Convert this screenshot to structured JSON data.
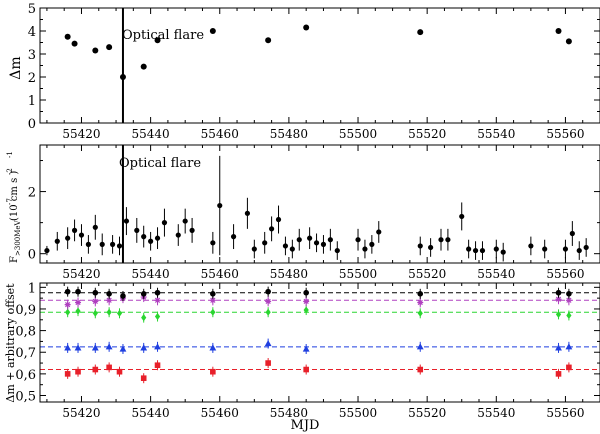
{
  "chart_data": [
    {
      "type": "scatter",
      "title": "",
      "xlabel": "",
      "ylabel": "Δm",
      "xlim": [
        55408,
        55570
      ],
      "ylim": [
        5,
        0
      ],
      "x_ticks": [
        "55420",
        "55440",
        "55460",
        "55480",
        "55500",
        "55520",
        "55540",
        "55560"
      ],
      "y_ticks": [
        "0",
        "1",
        "2",
        "3",
        "4",
        "5"
      ],
      "annotation": "Optical flare",
      "flare_mjd": 55432,
      "points": [
        {
          "x": 55416,
          "y": 3.75
        },
        {
          "x": 55418,
          "y": 3.45
        },
        {
          "x": 55424,
          "y": 3.15
        },
        {
          "x": 55428,
          "y": 3.3
        },
        {
          "x": 55432,
          "y": 2.0
        },
        {
          "x": 55438,
          "y": 2.45
        },
        {
          "x": 55442,
          "y": 3.6
        },
        {
          "x": 55458,
          "y": 4.0
        },
        {
          "x": 55474,
          "y": 3.6
        },
        {
          "x": 55485,
          "y": 4.15
        },
        {
          "x": 55518,
          "y": 3.95
        },
        {
          "x": 55558,
          "y": 4.0
        },
        {
          "x": 55561,
          "y": 3.55
        }
      ]
    },
    {
      "type": "scatter",
      "title": "",
      "xlabel": "",
      "ylabel_main": "F",
      "ylabel_sub": ">300MeV",
      "ylabel_unit": "(10 cm s )",
      "ylabel_exp1": "-7",
      "ylabel_exp2": "-2",
      "ylabel_exp3": "-1",
      "xlim": [
        55408,
        55570
      ],
      "ylim": [
        -0.3,
        3.5
      ],
      "x_ticks": [
        "55420",
        "55440",
        "55460",
        "55480",
        "55500",
        "55520",
        "55540",
        "55560"
      ],
      "y_ticks": [
        "0",
        "2"
      ],
      "annotation": "Optical flare",
      "flare_mjd": 55432,
      "points": [
        {
          "x": 55410,
          "y": 0.1,
          "err": 0.15
        },
        {
          "x": 55413,
          "y": 0.4,
          "err": 0.3
        },
        {
          "x": 55416,
          "y": 0.5,
          "err": 0.35
        },
        {
          "x": 55418,
          "y": 0.75,
          "err": 0.35
        },
        {
          "x": 55420,
          "y": 0.6,
          "err": 0.35
        },
        {
          "x": 55422,
          "y": 0.3,
          "err": 0.3
        },
        {
          "x": 55424,
          "y": 0.85,
          "err": 0.4
        },
        {
          "x": 55426,
          "y": 0.3,
          "err": 0.35
        },
        {
          "x": 55429,
          "y": 0.3,
          "err": 0.3
        },
        {
          "x": 55431,
          "y": 0.25,
          "err": 0.3
        },
        {
          "x": 55433,
          "y": 1.05,
          "err": 0.45
        },
        {
          "x": 55436,
          "y": 0.75,
          "err": 0.4
        },
        {
          "x": 55438,
          "y": 0.55,
          "err": 0.35
        },
        {
          "x": 55440,
          "y": 0.4,
          "err": 0.3
        },
        {
          "x": 55442,
          "y": 0.5,
          "err": 0.35
        },
        {
          "x": 55444,
          "y": 1.0,
          "err": 0.45
        },
        {
          "x": 55448,
          "y": 0.6,
          "err": 0.35
        },
        {
          "x": 55450,
          "y": 1.05,
          "err": 0.4
        },
        {
          "x": 55452,
          "y": 0.75,
          "err": 0.4
        },
        {
          "x": 55458,
          "y": 0.35,
          "err": 0.35
        },
        {
          "x": 55460,
          "y": 1.55,
          "err": 1.6
        },
        {
          "x": 55464,
          "y": 0.55,
          "err": 0.4
        },
        {
          "x": 55468,
          "y": 1.3,
          "err": 0.5
        },
        {
          "x": 55470,
          "y": 0.15,
          "err": 0.3
        },
        {
          "x": 55473,
          "y": 0.35,
          "err": 0.35
        },
        {
          "x": 55475,
          "y": 0.8,
          "err": 0.4
        },
        {
          "x": 55477,
          "y": 1.1,
          "err": 0.45
        },
        {
          "x": 55479,
          "y": 0.25,
          "err": 0.3
        },
        {
          "x": 55481,
          "y": 0.15,
          "err": 0.3
        },
        {
          "x": 55483,
          "y": 0.45,
          "err": 0.35
        },
        {
          "x": 55486,
          "y": 0.5,
          "err": 0.35
        },
        {
          "x": 55488,
          "y": 0.35,
          "err": 0.3
        },
        {
          "x": 55490,
          "y": 0.3,
          "err": 0.3
        },
        {
          "x": 55492,
          "y": 0.45,
          "err": 0.35
        },
        {
          "x": 55494,
          "y": 0.1,
          "err": 0.3
        },
        {
          "x": 55500,
          "y": 0.45,
          "err": 0.35
        },
        {
          "x": 55502,
          "y": 0.15,
          "err": 0.3
        },
        {
          "x": 55504,
          "y": 0.3,
          "err": 0.3
        },
        {
          "x": 55506,
          "y": 0.7,
          "err": 0.35
        },
        {
          "x": 55518,
          "y": 0.25,
          "err": 0.3
        },
        {
          "x": 55521,
          "y": 0.2,
          "err": 0.3
        },
        {
          "x": 55524,
          "y": 0.45,
          "err": 0.35
        },
        {
          "x": 55526,
          "y": 0.45,
          "err": 0.35
        },
        {
          "x": 55530,
          "y": 1.2,
          "err": 0.45
        },
        {
          "x": 55532,
          "y": 0.15,
          "err": 0.3
        },
        {
          "x": 55534,
          "y": 0.1,
          "err": 0.3
        },
        {
          "x": 55536,
          "y": 0.1,
          "err": 0.3
        },
        {
          "x": 55540,
          "y": 0.15,
          "err": 0.3
        },
        {
          "x": 55542,
          "y": 0.05,
          "err": 0.3
        },
        {
          "x": 55550,
          "y": 0.25,
          "err": 0.3
        },
        {
          "x": 55554,
          "y": 0.15,
          "err": 0.3
        },
        {
          "x": 55560,
          "y": 0.15,
          "err": 0.3
        },
        {
          "x": 55562,
          "y": 0.65,
          "err": 0.4
        },
        {
          "x": 55564,
          "y": 0.1,
          "err": 0.3
        },
        {
          "x": 55566,
          "y": 0.2,
          "err": 0.3
        }
      ]
    },
    {
      "type": "scatter",
      "title": "",
      "xlabel": "MJD",
      "ylabel": "Δm + arbitrary offset",
      "xlim": [
        55408,
        55570
      ],
      "ylim": [
        1.02,
        0.47
      ],
      "x_ticks": [
        "55420",
        "55440",
        "55460",
        "55480",
        "55500",
        "55520",
        "55540",
        "55560"
      ],
      "y_ticks": [
        "0,5",
        "0,6",
        "0,7",
        "0,8",
        "0,9",
        "1"
      ],
      "series": [
        {
          "name": "red",
          "color": "#e8202a",
          "marker": "square",
          "ref": 0.62,
          "points": [
            {
              "x": 55416,
              "y": 0.6
            },
            {
              "x": 55419,
              "y": 0.61
            },
            {
              "x": 55424,
              "y": 0.62
            },
            {
              "x": 55428,
              "y": 0.63
            },
            {
              "x": 55431,
              "y": 0.61
            },
            {
              "x": 55438,
              "y": 0.58
            },
            {
              "x": 55442,
              "y": 0.64
            },
            {
              "x": 55458,
              "y": 0.61
            },
            {
              "x": 55474,
              "y": 0.65
            },
            {
              "x": 55485,
              "y": 0.62
            },
            {
              "x": 55518,
              "y": 0.62
            },
            {
              "x": 55558,
              "y": 0.6
            },
            {
              "x": 55561,
              "y": 0.63
            }
          ]
        },
        {
          "name": "blue",
          "color": "#1f3fe0",
          "marker": "triangle",
          "ref": 0.725,
          "points": [
            {
              "x": 55416,
              "y": 0.72
            },
            {
              "x": 55419,
              "y": 0.72
            },
            {
              "x": 55424,
              "y": 0.72
            },
            {
              "x": 55428,
              "y": 0.725
            },
            {
              "x": 55432,
              "y": 0.715
            },
            {
              "x": 55438,
              "y": 0.72
            },
            {
              "x": 55442,
              "y": 0.725
            },
            {
              "x": 55458,
              "y": 0.72
            },
            {
              "x": 55474,
              "y": 0.74
            },
            {
              "x": 55485,
              "y": 0.715
            },
            {
              "x": 55518,
              "y": 0.725
            },
            {
              "x": 55558,
              "y": 0.72
            },
            {
              "x": 55561,
              "y": 0.725
            }
          ]
        },
        {
          "name": "green",
          "color": "#2ad630",
          "marker": "diamond",
          "ref": 0.885,
          "points": [
            {
              "x": 55416,
              "y": 0.885
            },
            {
              "x": 55419,
              "y": 0.89
            },
            {
              "x": 55424,
              "y": 0.88
            },
            {
              "x": 55428,
              "y": 0.885
            },
            {
              "x": 55431,
              "y": 0.88
            },
            {
              "x": 55438,
              "y": 0.86
            },
            {
              "x": 55442,
              "y": 0.865
            },
            {
              "x": 55458,
              "y": 0.885
            },
            {
              "x": 55474,
              "y": 0.885
            },
            {
              "x": 55485,
              "y": 0.895
            },
            {
              "x": 55518,
              "y": 0.88
            },
            {
              "x": 55558,
              "y": 0.875
            },
            {
              "x": 55561,
              "y": 0.87
            }
          ]
        },
        {
          "name": "purple",
          "color": "#b040c0",
          "marker": "star",
          "ref": 0.94,
          "points": [
            {
              "x": 55416,
              "y": 0.92
            },
            {
              "x": 55419,
              "y": 0.93
            },
            {
              "x": 55424,
              "y": 0.935
            },
            {
              "x": 55428,
              "y": 0.94
            },
            {
              "x": 55432,
              "y": 0.95
            },
            {
              "x": 55438,
              "y": 0.955
            },
            {
              "x": 55442,
              "y": 0.94
            },
            {
              "x": 55458,
              "y": 0.94
            },
            {
              "x": 55474,
              "y": 0.935
            },
            {
              "x": 55485,
              "y": 0.935
            },
            {
              "x": 55518,
              "y": 0.93
            },
            {
              "x": 55558,
              "y": 0.945
            },
            {
              "x": 55561,
              "y": 0.94
            }
          ]
        },
        {
          "name": "black",
          "color": "#000000",
          "marker": "circle",
          "ref": 0.975,
          "points": [
            {
              "x": 55416,
              "y": 0.98
            },
            {
              "x": 55419,
              "y": 0.98
            },
            {
              "x": 55424,
              "y": 0.975
            },
            {
              "x": 55428,
              "y": 0.97
            },
            {
              "x": 55432,
              "y": 0.96
            },
            {
              "x": 55438,
              "y": 0.97
            },
            {
              "x": 55442,
              "y": 0.975
            },
            {
              "x": 55458,
              "y": 0.97
            },
            {
              "x": 55474,
              "y": 0.98
            },
            {
              "x": 55485,
              "y": 0.975
            },
            {
              "x": 55518,
              "y": 0.97
            },
            {
              "x": 55558,
              "y": 0.975
            },
            {
              "x": 55561,
              "y": 0.97
            }
          ]
        }
      ]
    }
  ]
}
